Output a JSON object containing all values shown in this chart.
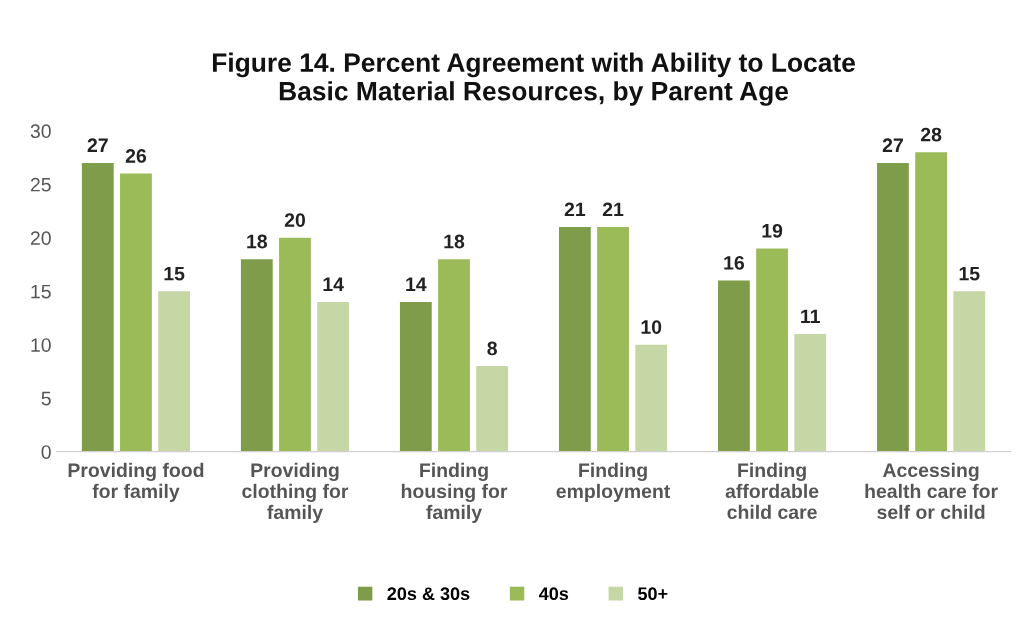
{
  "chart_data": {
    "type": "bar",
    "title": "Figure 14. Percent Agreement with Ability to Locate\nBasic Material Resources, by Parent Age",
    "categories": [
      "Providing food\nfor family",
      "Providing\nclothing for\nfamily",
      "Finding\nhousing for\nfamily",
      "Finding\nemployment",
      "Finding\naffordable\nchild care",
      "Accessing\nhealth care for\nself or child"
    ],
    "series": [
      {
        "name": "20s & 30s",
        "color": "#7f9c4b",
        "values": [
          27,
          18,
          14,
          21,
          16,
          27
        ]
      },
      {
        "name": "40s",
        "color": "#9bbb59",
        "values": [
          26,
          20,
          18,
          21,
          19,
          28
        ]
      },
      {
        "name": "50+",
        "color": "#c5d7a5",
        "values": [
          15,
          14,
          8,
          10,
          11,
          15
        ]
      }
    ],
    "ylim": [
      0,
      30
    ],
    "yticks": [
      0,
      5,
      10,
      15,
      20,
      25,
      30
    ],
    "grid": false,
    "legend": "bottom",
    "data_labels": true
  }
}
